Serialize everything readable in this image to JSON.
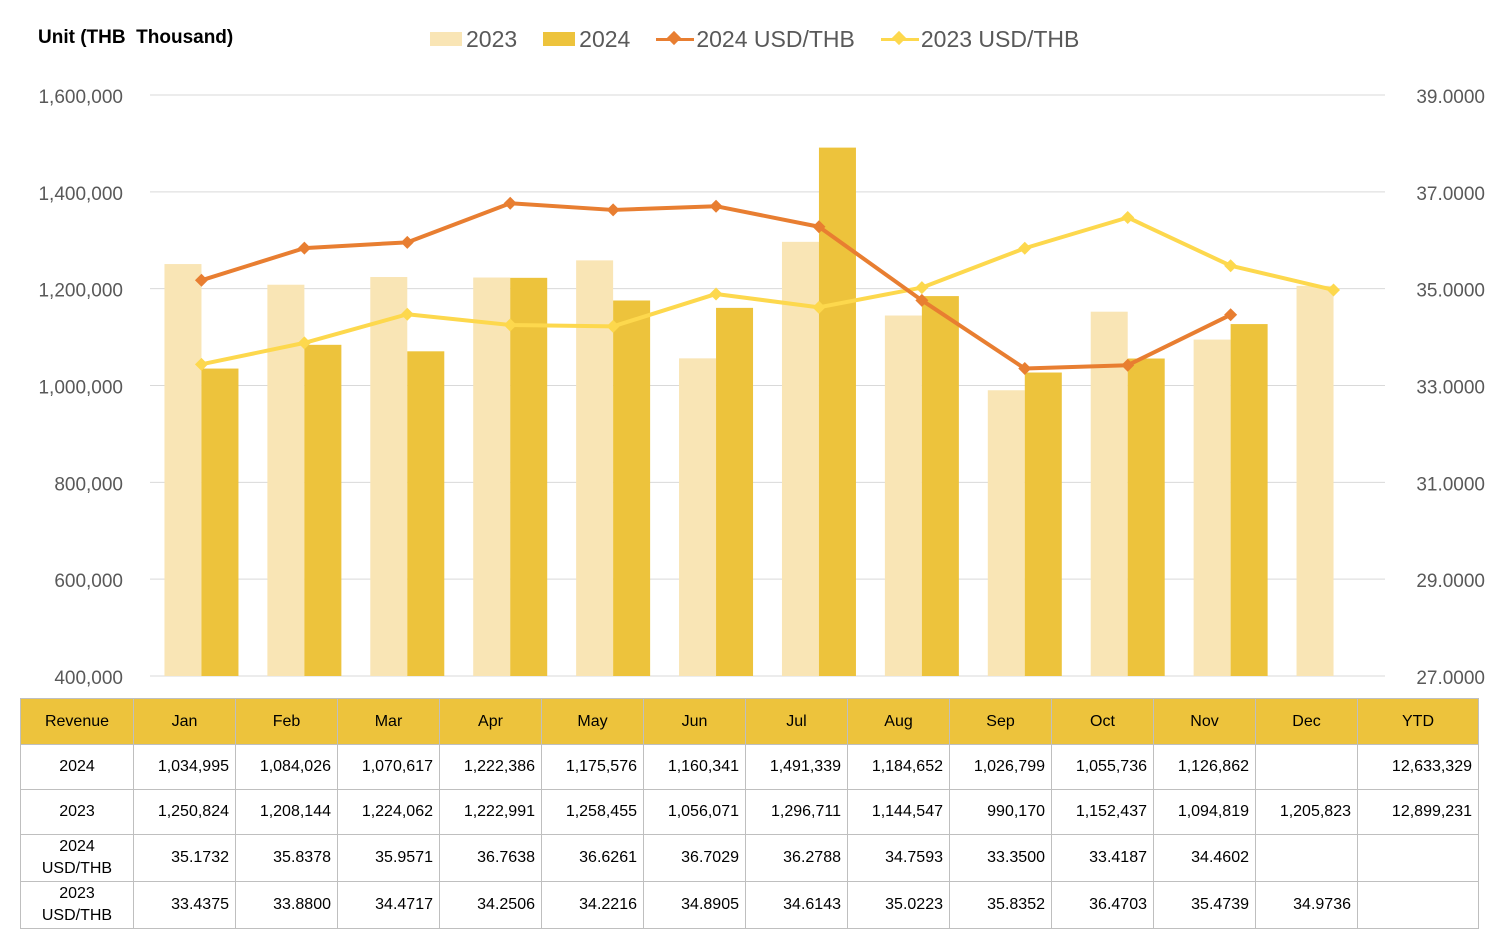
{
  "unit_label": "Unit (THB  Thousand)",
  "colors": {
    "bar_2023": "#f9e5b5",
    "bar_2024": "#edc33c",
    "line_2024": "#e87e31",
    "line_2023": "#fdd84d",
    "grid": "#d9d9d9",
    "axis_text": "#595959",
    "header_bg": "#edc33c"
  },
  "legend": [
    {
      "label": "2023",
      "kind": "bar",
      "color": "#f9e5b5"
    },
    {
      "label": "2024",
      "kind": "bar",
      "color": "#edc33c"
    },
    {
      "label": "2024 USD/THB",
      "kind": "line",
      "color": "#e87e31"
    },
    {
      "label": "2023 USD/THB",
      "kind": "line",
      "color": "#fdd84d"
    }
  ],
  "chart_data": {
    "type": "bar",
    "categories": [
      "Jan",
      "Feb",
      "Mar",
      "Apr",
      "May",
      "Jun",
      "Jul",
      "Aug",
      "Sep",
      "Oct",
      "Nov",
      "Dec"
    ],
    "series": [
      {
        "name": "2023",
        "type": "bar",
        "axis": "left",
        "values": [
          1250824,
          1208144,
          1224062,
          1222991,
          1258455,
          1056071,
          1296711,
          1144547,
          990170,
          1152437,
          1094819,
          1205823
        ]
      },
      {
        "name": "2024",
        "type": "bar",
        "axis": "left",
        "values": [
          1034995,
          1084026,
          1070617,
          1222386,
          1175576,
          1160341,
          1491339,
          1184652,
          1026799,
          1055736,
          1126862,
          null
        ]
      },
      {
        "name": "2024 USD/THB",
        "type": "line",
        "axis": "right",
        "values": [
          35.1732,
          35.8378,
          35.9571,
          36.7638,
          36.6261,
          36.7029,
          36.2788,
          34.7593,
          33.35,
          33.4187,
          34.4602,
          null
        ]
      },
      {
        "name": "2023 USD/THB",
        "type": "line",
        "axis": "right",
        "values": [
          33.4375,
          33.88,
          34.4717,
          34.2506,
          34.2216,
          34.8905,
          34.6143,
          35.0223,
          35.8352,
          36.4703,
          35.4739,
          34.9736
        ]
      }
    ],
    "y_left": {
      "range": [
        400000,
        1600000
      ],
      "ticks": [
        "400,000",
        "600,000",
        "800,000",
        "1,000,000",
        "1,200,000",
        "1,400,000",
        "1,600,000"
      ],
      "tick_values": [
        400000,
        600000,
        800000,
        1000000,
        1200000,
        1400000,
        1600000
      ]
    },
    "y_right": {
      "range": [
        27,
        39
      ],
      "ticks": [
        "27.0000",
        "29.0000",
        "31.0000",
        "33.0000",
        "35.0000",
        "37.0000",
        "39.0000"
      ],
      "tick_values": [
        27,
        29,
        31,
        33,
        35,
        37,
        39
      ]
    },
    "grid": true,
    "legend_position": "top"
  },
  "table": {
    "header": [
      "Revenue",
      "Jan",
      "Feb",
      "Mar",
      "Apr",
      "May",
      "Jun",
      "Jul",
      "Aug",
      "Sep",
      "Oct",
      "Nov",
      "Dec",
      "YTD"
    ],
    "rows": [
      {
        "label": "2024",
        "cells": [
          "1,034,995",
          "1,084,026",
          "1,070,617",
          "1,222,386",
          "1,175,576",
          "1,160,341",
          "1,491,339",
          "1,184,652",
          "1,026,799",
          "1,055,736",
          "1,126,862",
          "",
          "12,633,329"
        ]
      },
      {
        "label": "2023",
        "cells": [
          "1,250,824",
          "1,208,144",
          "1,224,062",
          "1,222,991",
          "1,258,455",
          "1,056,071",
          "1,296,711",
          "1,144,547",
          "990,170",
          "1,152,437",
          "1,094,819",
          "1,205,823",
          "12,899,231"
        ]
      },
      {
        "label": "2024 USD/THB",
        "cells": [
          "35.1732",
          "35.8378",
          "35.9571",
          "36.7638",
          "36.6261",
          "36.7029",
          "36.2788",
          "34.7593",
          "33.3500",
          "33.4187",
          "34.4602",
          "",
          ""
        ]
      },
      {
        "label": "2023 USD/THB",
        "cells": [
          "33.4375",
          "33.8800",
          "34.4717",
          "34.2506",
          "34.2216",
          "34.8905",
          "34.6143",
          "35.0223",
          "35.8352",
          "36.4703",
          "35.4739",
          "34.9736",
          ""
        ]
      }
    ]
  }
}
